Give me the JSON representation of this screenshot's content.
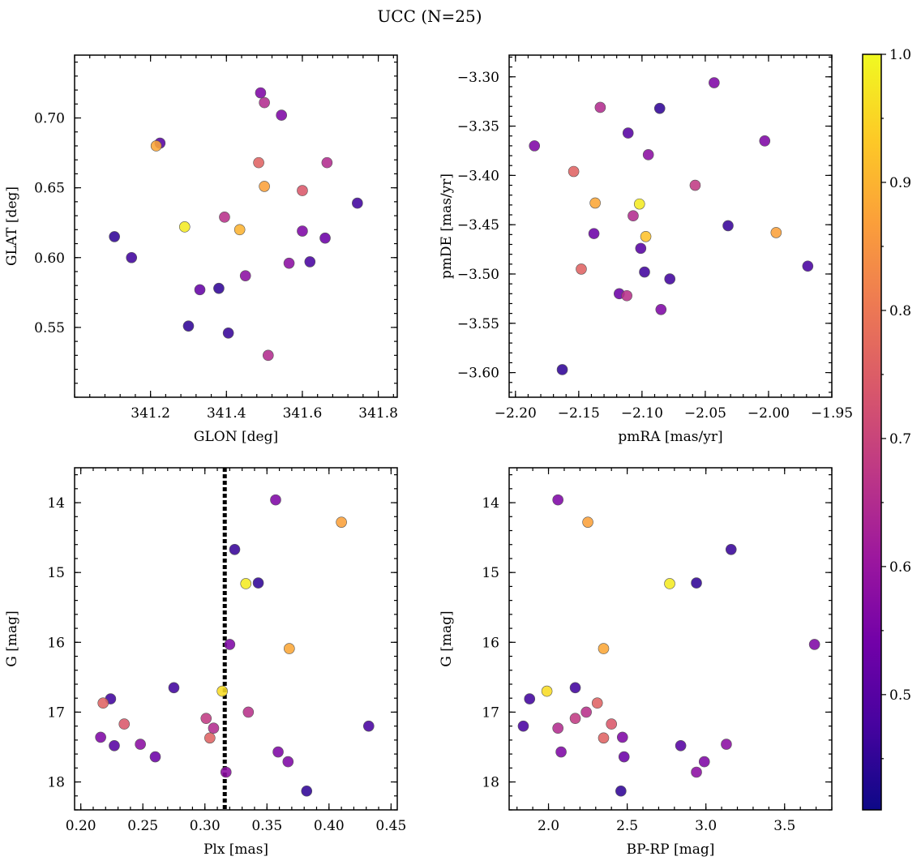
{
  "figure": {
    "title": "UCC (N=25)"
  },
  "colormap": {
    "name": "plasma",
    "stops": [
      "#0d0887",
      "#46039f",
      "#7201a8",
      "#9c179e",
      "#bd3786",
      "#d8576b",
      "#ed7953",
      "#fb9f3a",
      "#fdca26",
      "#f0f921"
    ],
    "vmin": 0.41,
    "vmax": 1.0,
    "ticks": [
      0.5,
      0.6,
      0.7,
      0.8,
      0.9,
      1.0
    ],
    "tick_labels": [
      "0.5",
      "0.6",
      "0.7",
      "0.8",
      "0.9",
      "1.0"
    ]
  },
  "chart_data": [
    {
      "id": "glon-glat",
      "type": "scatter",
      "title": "",
      "xlabel": "GLON [deg]",
      "ylabel": "GLAT [deg]",
      "xlim": [
        341.0,
        341.85
      ],
      "ylim": [
        0.5,
        0.745
      ],
      "xticks": [
        341.2,
        341.4,
        341.6,
        341.8
      ],
      "xtick_labels": [
        "341.2",
        "341.4",
        "341.6",
        "341.8"
      ],
      "yticks": [
        0.55,
        0.6,
        0.65,
        0.7
      ],
      "ytick_labels": [
        "0.55",
        "0.60",
        "0.65",
        "0.70"
      ],
      "y_inverted": false,
      "grid": false,
      "points": [
        {
          "x": 341.49,
          "y": 0.718,
          "c": 0.56
        },
        {
          "x": 341.5,
          "y": 0.711,
          "c": 0.65
        },
        {
          "x": 341.545,
          "y": 0.702,
          "c": 0.56
        },
        {
          "x": 341.225,
          "y": 0.682,
          "c": 0.5
        },
        {
          "x": 341.215,
          "y": 0.68,
          "c": 0.88
        },
        {
          "x": 341.485,
          "y": 0.668,
          "c": 0.76
        },
        {
          "x": 341.665,
          "y": 0.668,
          "c": 0.65
        },
        {
          "x": 341.5,
          "y": 0.651,
          "c": 0.87
        },
        {
          "x": 341.6,
          "y": 0.648,
          "c": 0.74
        },
        {
          "x": 341.745,
          "y": 0.639,
          "c": 0.47
        },
        {
          "x": 341.395,
          "y": 0.629,
          "c": 0.66
        },
        {
          "x": 341.29,
          "y": 0.622,
          "c": 0.98
        },
        {
          "x": 341.435,
          "y": 0.62,
          "c": 0.9
        },
        {
          "x": 341.6,
          "y": 0.619,
          "c": 0.56
        },
        {
          "x": 341.105,
          "y": 0.615,
          "c": 0.45
        },
        {
          "x": 341.66,
          "y": 0.614,
          "c": 0.53
        },
        {
          "x": 341.15,
          "y": 0.6,
          "c": 0.47
        },
        {
          "x": 341.565,
          "y": 0.596,
          "c": 0.58
        },
        {
          "x": 341.62,
          "y": 0.597,
          "c": 0.48
        },
        {
          "x": 341.45,
          "y": 0.587,
          "c": 0.58
        },
        {
          "x": 341.38,
          "y": 0.578,
          "c": 0.45
        },
        {
          "x": 341.33,
          "y": 0.577,
          "c": 0.52
        },
        {
          "x": 341.3,
          "y": 0.551,
          "c": 0.45
        },
        {
          "x": 341.405,
          "y": 0.546,
          "c": 0.46
        },
        {
          "x": 341.51,
          "y": 0.53,
          "c": 0.65
        }
      ]
    },
    {
      "id": "pmra-pmde",
      "type": "scatter",
      "title": "",
      "xlabel": "pmRA [mas/yr]",
      "ylabel": "pmDE [mas/yr]",
      "xlim": [
        -2.205,
        -1.95
      ],
      "ylim": [
        -3.625,
        -3.278
      ],
      "xticks": [
        -2.2,
        -2.15,
        -2.1,
        -2.05,
        -2.0,
        -1.95
      ],
      "xtick_labels": [
        "−2.20",
        "−2.15",
        "−2.10",
        "−2.05",
        "−2.00",
        "−1.95"
      ],
      "yticks": [
        -3.6,
        -3.55,
        -3.5,
        -3.45,
        -3.4,
        -3.35,
        -3.3
      ],
      "ytick_labels": [
        "−3.60",
        "−3.55",
        "−3.50",
        "−3.45",
        "−3.40",
        "−3.35",
        "−3.30"
      ],
      "y_inverted": false,
      "grid": false,
      "points": [
        {
          "x": -2.043,
          "y": -3.306,
          "c": 0.56
        },
        {
          "x": -2.133,
          "y": -3.331,
          "c": 0.65
        },
        {
          "x": -2.086,
          "y": -3.332,
          "c": 0.45
        },
        {
          "x": -2.111,
          "y": -3.357,
          "c": 0.5
        },
        {
          "x": -2.185,
          "y": -3.37,
          "c": 0.56
        },
        {
          "x": -2.003,
          "y": -3.365,
          "c": 0.56
        },
        {
          "x": -2.095,
          "y": -3.379,
          "c": 0.58
        },
        {
          "x": -2.154,
          "y": -3.396,
          "c": 0.76
        },
        {
          "x": -2.058,
          "y": -3.41,
          "c": 0.68
        },
        {
          "x": -2.137,
          "y": -3.428,
          "c": 0.88
        },
        {
          "x": -2.102,
          "y": -3.429,
          "c": 0.98
        },
        {
          "x": -2.107,
          "y": -3.441,
          "c": 0.65
        },
        {
          "x": -2.032,
          "y": -3.451,
          "c": 0.46
        },
        {
          "x": -2.138,
          "y": -3.459,
          "c": 0.53
        },
        {
          "x": -2.097,
          "y": -3.462,
          "c": 0.92
        },
        {
          "x": -1.994,
          "y": -3.458,
          "c": 0.87
        },
        {
          "x": -2.101,
          "y": -3.474,
          "c": 0.5
        },
        {
          "x": -1.969,
          "y": -3.492,
          "c": 0.48
        },
        {
          "x": -2.148,
          "y": -3.495,
          "c": 0.76
        },
        {
          "x": -2.098,
          "y": -3.498,
          "c": 0.47
        },
        {
          "x": -2.078,
          "y": -3.505,
          "c": 0.47
        },
        {
          "x": -2.118,
          "y": -3.52,
          "c": 0.53
        },
        {
          "x": -2.112,
          "y": -3.522,
          "c": 0.66
        },
        {
          "x": -2.085,
          "y": -3.536,
          "c": 0.56
        },
        {
          "x": -2.163,
          "y": -3.597,
          "c": 0.45
        }
      ]
    },
    {
      "id": "plx-g",
      "type": "scatter",
      "title": "",
      "xlabel": "Plx [mas]",
      "ylabel": "G [mag]",
      "xlim": [
        0.195,
        0.455
      ],
      "ylim": [
        18.4,
        13.5
      ],
      "xticks": [
        0.2,
        0.25,
        0.3,
        0.35,
        0.4,
        0.45
      ],
      "xtick_labels": [
        "0.20",
        "0.25",
        "0.30",
        "0.35",
        "0.40",
        "0.45"
      ],
      "yticks": [
        14,
        15,
        16,
        17,
        18
      ],
      "ytick_labels": [
        "14",
        "15",
        "16",
        "17",
        "18"
      ],
      "y_inverted": true,
      "grid": false,
      "vline": 0.316,
      "points": [
        {
          "x": 0.357,
          "y": 13.96,
          "c": 0.56
        },
        {
          "x": 0.41,
          "y": 14.28,
          "c": 0.87
        },
        {
          "x": 0.324,
          "y": 14.67,
          "c": 0.46
        },
        {
          "x": 0.333,
          "y": 15.16,
          "c": 0.98
        },
        {
          "x": 0.343,
          "y": 15.15,
          "c": 0.45
        },
        {
          "x": 0.368,
          "y": 16.09,
          "c": 0.88
        },
        {
          "x": 0.32,
          "y": 16.03,
          "c": 0.56
        },
        {
          "x": 0.275,
          "y": 16.65,
          "c": 0.47
        },
        {
          "x": 0.314,
          "y": 16.7,
          "c": 0.96
        },
        {
          "x": 0.224,
          "y": 16.81,
          "c": 0.47
        },
        {
          "x": 0.218,
          "y": 16.87,
          "c": 0.76
        },
        {
          "x": 0.335,
          "y": 17.0,
          "c": 0.66
        },
        {
          "x": 0.301,
          "y": 17.09,
          "c": 0.68
        },
        {
          "x": 0.235,
          "y": 17.17,
          "c": 0.74
        },
        {
          "x": 0.432,
          "y": 17.2,
          "c": 0.48
        },
        {
          "x": 0.307,
          "y": 17.23,
          "c": 0.65
        },
        {
          "x": 0.216,
          "y": 17.36,
          "c": 0.56
        },
        {
          "x": 0.304,
          "y": 17.37,
          "c": 0.76
        },
        {
          "x": 0.248,
          "y": 17.46,
          "c": 0.58
        },
        {
          "x": 0.227,
          "y": 17.48,
          "c": 0.5
        },
        {
          "x": 0.359,
          "y": 17.57,
          "c": 0.56
        },
        {
          "x": 0.26,
          "y": 17.64,
          "c": 0.53
        },
        {
          "x": 0.367,
          "y": 17.71,
          "c": 0.56
        },
        {
          "x": 0.317,
          "y": 17.86,
          "c": 0.58
        },
        {
          "x": 0.382,
          "y": 18.13,
          "c": 0.45
        }
      ]
    },
    {
      "id": "bprp-g",
      "type": "scatter",
      "title": "",
      "xlabel": "BP-RP [mag]",
      "ylabel": "G [mag]",
      "xlim": [
        1.75,
        3.8
      ],
      "ylim": [
        18.4,
        13.5
      ],
      "xticks": [
        2.0,
        2.5,
        3.0,
        3.5
      ],
      "xtick_labels": [
        "2.0",
        "2.5",
        "3.0",
        "3.5"
      ],
      "yticks": [
        14,
        15,
        16,
        17,
        18
      ],
      "ytick_labels": [
        "14",
        "15",
        "16",
        "17",
        "18"
      ],
      "y_inverted": true,
      "grid": false,
      "points": [
        {
          "x": 2.06,
          "y": 13.96,
          "c": 0.56
        },
        {
          "x": 2.25,
          "y": 14.28,
          "c": 0.87
        },
        {
          "x": 3.16,
          "y": 14.67,
          "c": 0.46
        },
        {
          "x": 2.77,
          "y": 15.16,
          "c": 0.98
        },
        {
          "x": 2.94,
          "y": 15.15,
          "c": 0.45
        },
        {
          "x": 2.35,
          "y": 16.09,
          "c": 0.88
        },
        {
          "x": 3.69,
          "y": 16.03,
          "c": 0.56
        },
        {
          "x": 2.17,
          "y": 16.65,
          "c": 0.47
        },
        {
          "x": 1.99,
          "y": 16.7,
          "c": 0.96
        },
        {
          "x": 1.88,
          "y": 16.81,
          "c": 0.47
        },
        {
          "x": 2.31,
          "y": 16.87,
          "c": 0.76
        },
        {
          "x": 2.24,
          "y": 17.0,
          "c": 0.66
        },
        {
          "x": 2.17,
          "y": 17.09,
          "c": 0.68
        },
        {
          "x": 2.4,
          "y": 17.17,
          "c": 0.74
        },
        {
          "x": 1.84,
          "y": 17.2,
          "c": 0.48
        },
        {
          "x": 2.06,
          "y": 17.23,
          "c": 0.65
        },
        {
          "x": 2.47,
          "y": 17.36,
          "c": 0.56
        },
        {
          "x": 2.35,
          "y": 17.37,
          "c": 0.76
        },
        {
          "x": 3.13,
          "y": 17.46,
          "c": 0.58
        },
        {
          "x": 2.84,
          "y": 17.48,
          "c": 0.5
        },
        {
          "x": 2.08,
          "y": 17.57,
          "c": 0.56
        },
        {
          "x": 2.48,
          "y": 17.64,
          "c": 0.53
        },
        {
          "x": 2.99,
          "y": 17.71,
          "c": 0.56
        },
        {
          "x": 2.94,
          "y": 17.86,
          "c": 0.58
        },
        {
          "x": 2.46,
          "y": 18.13,
          "c": 0.45
        }
      ]
    }
  ]
}
